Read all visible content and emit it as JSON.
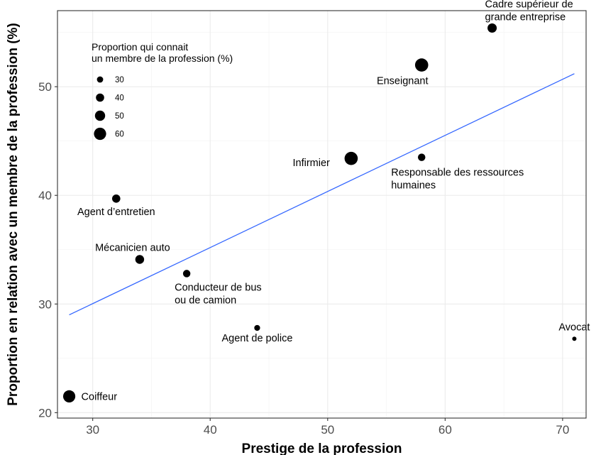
{
  "chart_data": {
    "type": "scatter",
    "xlabel": "Prestige de la profession",
    "ylabel": "Proportion en relation avec un membre de la profession (%)",
    "xlim": [
      27,
      72
    ],
    "ylim": [
      19.5,
      57
    ],
    "x_ticks": [
      30,
      40,
      50,
      60,
      70
    ],
    "y_ticks": [
      20,
      30,
      40,
      50
    ],
    "grid": true,
    "points": [
      {
        "name": "Coiffeur",
        "x": 28,
        "y": 21.5,
        "size": 60
      },
      {
        "name": "Agent d’entretien",
        "x": 32,
        "y": 39.7,
        "size": 40
      },
      {
        "name": "Mécanicien auto",
        "x": 34,
        "y": 34.1,
        "size": 43
      },
      {
        "name": "Conducteur de bus\nou de camion",
        "x": 38,
        "y": 32.8,
        "size": 36
      },
      {
        "name": "Agent de police",
        "x": 44,
        "y": 27.8,
        "size": 28
      },
      {
        "name": "Infirmier",
        "x": 52,
        "y": 43.4,
        "size": 65
      },
      {
        "name": "Responsable des ressources\nhumaines",
        "x": 58,
        "y": 43.5,
        "size": 36
      },
      {
        "name": "Enseignant",
        "x": 58,
        "y": 52.0,
        "size": 65
      },
      {
        "name": "Cadre supérieur de\ngrande entreprise",
        "x": 64,
        "y": 55.4,
        "size": 45
      },
      {
        "name": "Avocat",
        "x": 71,
        "y": 26.8,
        "size": 20
      }
    ],
    "trend_line": {
      "x": [
        28,
        71
      ],
      "y": [
        29.0,
        51.2
      ],
      "color": "#3366ff"
    },
    "legend": {
      "title": "Proportion qui connait\nun membre de la profession (%)",
      "placement": "top-left",
      "entries": [
        {
          "label": "30",
          "size": 30
        },
        {
          "label": "40",
          "size": 40
        },
        {
          "label": "50",
          "size": 50
        },
        {
          "label": "60",
          "size": 60
        }
      ]
    },
    "point_color": "#000000"
  }
}
